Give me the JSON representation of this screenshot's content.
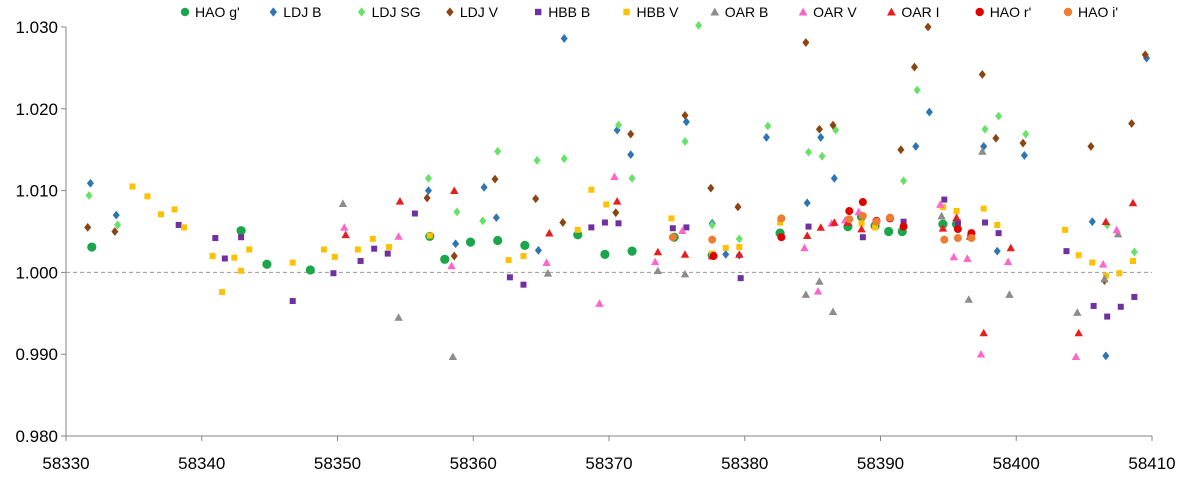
{
  "chart_data": {
    "type": "scatter",
    "title": "",
    "xlabel": "",
    "ylabel": "",
    "xlim": [
      58330,
      58410
    ],
    "ylim": [
      0.98,
      1.03
    ],
    "x_ticks": [
      "58330",
      "58340",
      "58350",
      "58360",
      "58370",
      "58380",
      "58390",
      "58400",
      "58410"
    ],
    "y_ticks": [
      "0.980",
      "0.990",
      "1.000",
      "1.010",
      "1.020",
      "1.030"
    ],
    "reference_line": 1.0,
    "legend_position": "top",
    "series": [
      {
        "name": "HAO g'",
        "color": "#1aa64a",
        "marker": "circle",
        "points": [
          [
            58331.9,
            1.0031
          ],
          [
            58342.9,
            1.0051
          ],
          [
            58344.8,
            1.001
          ],
          [
            58348.0,
            1.0003
          ],
          [
            58356.8,
            1.0044
          ],
          [
            58357.9,
            1.0016
          ],
          [
            58359.8,
            1.0037
          ],
          [
            58361.8,
            1.0039
          ],
          [
            58363.8,
            1.0033
          ],
          [
            58367.7,
            1.0046
          ],
          [
            58369.7,
            1.0022
          ],
          [
            58371.7,
            1.0026
          ],
          [
            58374.8,
            1.0043
          ],
          [
            58377.6,
            1.0021
          ],
          [
            58382.6,
            1.0048
          ],
          [
            58387.6,
            1.0056
          ],
          [
            58388.6,
            1.0068
          ],
          [
            58389.6,
            1.0057
          ],
          [
            58390.6,
            1.005
          ],
          [
            58391.6,
            1.005
          ],
          [
            58394.6,
            1.0059
          ],
          [
            58395.6,
            1.0059
          ]
        ]
      },
      {
        "name": "LDJ B",
        "color": "#2e75b6",
        "marker": "diamond",
        "points": [
          [
            58331.8,
            1.0109
          ],
          [
            58333.7,
            1.007
          ],
          [
            58356.7,
            1.01
          ],
          [
            58358.7,
            1.0035
          ],
          [
            58360.8,
            1.0104
          ],
          [
            58361.7,
            1.0067
          ],
          [
            58364.8,
            1.0027
          ],
          [
            58366.7,
            1.0286
          ],
          [
            58370.6,
            1.0174
          ],
          [
            58371.6,
            1.0144
          ],
          [
            58375.7,
            1.0184
          ],
          [
            58377.6,
            1.006
          ],
          [
            58378.6,
            1.0022
          ],
          [
            58379.6,
            1.0021
          ],
          [
            58381.6,
            1.0165
          ],
          [
            58384.6,
            1.0085
          ],
          [
            58385.6,
            1.0165
          ],
          [
            58386.6,
            1.0115
          ],
          [
            58392.6,
            1.0154
          ],
          [
            58393.6,
            1.0196
          ],
          [
            58396.6,
            1.0045
          ],
          [
            58397.6,
            1.0154
          ],
          [
            58398.6,
            1.0026
          ],
          [
            58400.6,
            1.0143
          ],
          [
            58405.6,
            1.0062
          ],
          [
            58406.6,
            0.9898
          ],
          [
            58409.6,
            1.0262
          ]
        ]
      },
      {
        "name": "LDJ SG",
        "color": "#66e266",
        "marker": "diamond",
        "points": [
          [
            58331.7,
            1.0094
          ],
          [
            58333.8,
            1.0058
          ],
          [
            58356.7,
            1.0115
          ],
          [
            58358.8,
            1.0074
          ],
          [
            58360.7,
            1.0063
          ],
          [
            58361.8,
            1.0148
          ],
          [
            58364.7,
            1.0137
          ],
          [
            58366.7,
            1.0139
          ],
          [
            58370.7,
            1.018
          ],
          [
            58371.7,
            1.0115
          ],
          [
            58375.6,
            1.016
          ],
          [
            58376.6,
            1.0302
          ],
          [
            58377.6,
            1.0058
          ],
          [
            58379.6,
            1.0041
          ],
          [
            58381.7,
            1.0179
          ],
          [
            58384.7,
            1.0147
          ],
          [
            58385.7,
            1.0142
          ],
          [
            58386.7,
            1.0174
          ],
          [
            58391.7,
            1.0112
          ],
          [
            58392.7,
            1.0223
          ],
          [
            58397.7,
            1.0175
          ],
          [
            58398.7,
            1.0191
          ],
          [
            58400.7,
            1.0169
          ],
          [
            58406.7,
            1.0058
          ],
          [
            58408.7,
            1.0025
          ]
        ]
      },
      {
        "name": "LDJ V",
        "color": "#8b4513",
        "marker": "diamond",
        "points": [
          [
            58331.6,
            1.0055
          ],
          [
            58333.6,
            1.005
          ],
          [
            58356.6,
            1.0091
          ],
          [
            58358.6,
            1.002
          ],
          [
            58361.6,
            1.0114
          ],
          [
            58364.6,
            1.009
          ],
          [
            58366.6,
            1.0061
          ],
          [
            58370.5,
            1.0073
          ],
          [
            58371.6,
            1.0169
          ],
          [
            58375.6,
            1.0192
          ],
          [
            58377.5,
            1.0103
          ],
          [
            58379.5,
            1.008
          ],
          [
            58384.5,
            1.0281
          ],
          [
            58385.5,
            1.0175
          ],
          [
            58386.5,
            1.018
          ],
          [
            58391.5,
            1.015
          ],
          [
            58392.5,
            1.0251
          ],
          [
            58393.5,
            1.03
          ],
          [
            58397.5,
            1.0242
          ],
          [
            58398.5,
            1.0164
          ],
          [
            58400.5,
            1.0158
          ],
          [
            58405.5,
            1.0154
          ],
          [
            58406.5,
            0.999
          ],
          [
            58408.5,
            1.0182
          ],
          [
            58409.5,
            1.0266
          ]
        ]
      },
      {
        "name": "HBB B",
        "color": "#7030a0",
        "marker": "square",
        "points": [
          [
            58338.3,
            1.0058
          ],
          [
            58341.0,
            1.0042
          ],
          [
            58341.7,
            1.0017
          ],
          [
            58342.9,
            1.0043
          ],
          [
            58346.7,
            0.9965
          ],
          [
            58349.7,
            0.9999
          ],
          [
            58351.7,
            1.0014
          ],
          [
            58352.7,
            1.0029
          ],
          [
            58353.7,
            1.0023
          ],
          [
            58355.7,
            1.0072
          ],
          [
            58362.7,
            0.9994
          ],
          [
            58363.7,
            0.9985
          ],
          [
            58368.7,
            1.0055
          ],
          [
            58369.7,
            1.0061
          ],
          [
            58370.7,
            1.006
          ],
          [
            58374.7,
            1.0054
          ],
          [
            58375.7,
            1.0055
          ],
          [
            58379.7,
            0.9993
          ],
          [
            58384.7,
            1.0056
          ],
          [
            58388.7,
            1.0043
          ],
          [
            58391.7,
            1.0062
          ],
          [
            58394.7,
            1.0089
          ],
          [
            58395.7,
            1.0061
          ],
          [
            58397.7,
            1.0061
          ],
          [
            58398.7,
            1.0048
          ],
          [
            58403.7,
            1.0026
          ],
          [
            58405.7,
            0.9959
          ],
          [
            58406.7,
            0.9946
          ],
          [
            58407.7,
            0.9958
          ],
          [
            58408.7,
            0.997
          ]
        ]
      },
      {
        "name": "HBB V",
        "color": "#ffc000",
        "marker": "square",
        "points": [
          [
            58334.9,
            1.0105
          ],
          [
            58336.0,
            1.0093
          ],
          [
            58337.0,
            1.0071
          ],
          [
            58338.0,
            1.0077
          ],
          [
            58338.7,
            1.0055
          ],
          [
            58340.8,
            1.002
          ],
          [
            58341.5,
            0.9976
          ],
          [
            58342.4,
            1.0018
          ],
          [
            58342.9,
            1.0002
          ],
          [
            58343.5,
            1.0028
          ],
          [
            58346.7,
            1.0012
          ],
          [
            58349.0,
            1.0028
          ],
          [
            58349.8,
            1.0019
          ],
          [
            58351.5,
            1.0028
          ],
          [
            58352.6,
            1.0041
          ],
          [
            58353.8,
            1.0031
          ],
          [
            58356.8,
            1.0045
          ],
          [
            58362.6,
            1.0015
          ],
          [
            58363.7,
            1.002
          ],
          [
            58367.7,
            1.0052
          ],
          [
            58368.7,
            1.0101
          ],
          [
            58369.8,
            1.0083
          ],
          [
            58374.6,
            1.0066
          ],
          [
            58377.6,
            1.0023
          ],
          [
            58378.6,
            1.003
          ],
          [
            58379.6,
            1.0031
          ],
          [
            58382.6,
            1.0061
          ],
          [
            58388.6,
            1.006
          ],
          [
            58389.6,
            1.0055
          ],
          [
            58394.6,
            1.008
          ],
          [
            58395.6,
            1.0075
          ],
          [
            58397.6,
            1.0078
          ],
          [
            58398.6,
            1.0058
          ],
          [
            58403.6,
            1.0052
          ],
          [
            58404.6,
            1.0021
          ],
          [
            58405.6,
            1.0012
          ],
          [
            58406.6,
            0.9996
          ],
          [
            58407.6,
            0.9999
          ],
          [
            58408.6,
            1.0014
          ]
        ]
      },
      {
        "name": "OAR B",
        "color": "#8c8c8c",
        "marker": "triangle",
        "points": [
          [
            58350.4,
            1.0084
          ],
          [
            58354.5,
            0.9945
          ],
          [
            58358.5,
            0.9897
          ],
          [
            58365.5,
            0.9999
          ],
          [
            58373.6,
            1.0002
          ],
          [
            58375.6,
            0.9998
          ],
          [
            58384.5,
            0.9973
          ],
          [
            58385.5,
            0.9989
          ],
          [
            58386.5,
            0.9952
          ],
          [
            58394.5,
            1.0069
          ],
          [
            58396.5,
            0.9967
          ],
          [
            58397.5,
            1.0148
          ],
          [
            58399.5,
            0.9973
          ],
          [
            58404.5,
            0.9951
          ],
          [
            58406.5,
            0.9992
          ],
          [
            58407.5,
            1.0047
          ]
        ]
      },
      {
        "name": "OAR V",
        "color": "#ff66cc",
        "marker": "triangle",
        "points": [
          [
            58350.5,
            1.0055
          ],
          [
            58354.5,
            1.0044
          ],
          [
            58358.4,
            1.0008
          ],
          [
            58365.4,
            1.0012
          ],
          [
            58369.3,
            0.9962
          ],
          [
            58370.4,
            1.0117
          ],
          [
            58373.4,
            1.0013
          ],
          [
            58375.4,
            1.0051
          ],
          [
            58384.4,
            1.003
          ],
          [
            58385.4,
            0.9977
          ],
          [
            58386.4,
            1.006
          ],
          [
            58387.4,
            1.0064
          ],
          [
            58388.4,
            1.0074
          ],
          [
            58394.4,
            1.0083
          ],
          [
            58395.4,
            1.0019
          ],
          [
            58396.4,
            1.0017
          ],
          [
            58397.4,
            0.99
          ],
          [
            58399.4,
            1.0013
          ],
          [
            58404.4,
            0.9897
          ],
          [
            58406.4,
            1.001
          ],
          [
            58407.4,
            1.0052
          ]
        ]
      },
      {
        "name": "OAR I",
        "color": "#e61e1e",
        "marker": "triangle",
        "points": [
          [
            58350.6,
            1.0046
          ],
          [
            58354.6,
            1.0087
          ],
          [
            58358.6,
            1.01
          ],
          [
            58365.6,
            1.0048
          ],
          [
            58370.6,
            1.0087
          ],
          [
            58373.6,
            1.0025
          ],
          [
            58375.6,
            1.0022
          ],
          [
            58377.6,
            1.002
          ],
          [
            58379.6,
            1.0022
          ],
          [
            58384.6,
            1.0045
          ],
          [
            58385.6,
            1.0055
          ],
          [
            58386.6,
            1.0061
          ],
          [
            58387.6,
            1.0061
          ],
          [
            58388.6,
            1.0053
          ],
          [
            58394.6,
            1.0054
          ],
          [
            58395.6,
            1.0067
          ],
          [
            58396.6,
            1.0044
          ],
          [
            58397.6,
            0.9926
          ],
          [
            58399.6,
            1.003
          ],
          [
            58404.6,
            0.9926
          ],
          [
            58406.6,
            1.0062
          ],
          [
            58408.6,
            1.0085
          ]
        ]
      },
      {
        "name": "HAO r'",
        "color": "#e00000",
        "marker": "circle",
        "points": [
          [
            58377.7,
            1.002
          ],
          [
            58382.7,
            1.0043
          ],
          [
            58387.7,
            1.0075
          ],
          [
            58388.7,
            1.0086
          ],
          [
            58389.7,
            1.0063
          ],
          [
            58390.7,
            1.0066
          ],
          [
            58391.7,
            1.0056
          ],
          [
            58395.7,
            1.0053
          ],
          [
            58396.7,
            1.0048
          ]
        ]
      },
      {
        "name": "HAO i'",
        "color": "#ed7d31",
        "marker": "circle",
        "points": [
          [
            58374.7,
            1.0043
          ],
          [
            58377.6,
            1.004
          ],
          [
            58382.7,
            1.0066
          ],
          [
            58387.7,
            1.0065
          ],
          [
            58388.7,
            1.0069
          ],
          [
            58389.7,
            1.0062
          ],
          [
            58390.7,
            1.0067
          ],
          [
            58394.7,
            1.004
          ],
          [
            58395.7,
            1.0042
          ],
          [
            58396.7,
            1.0042
          ]
        ]
      }
    ]
  }
}
